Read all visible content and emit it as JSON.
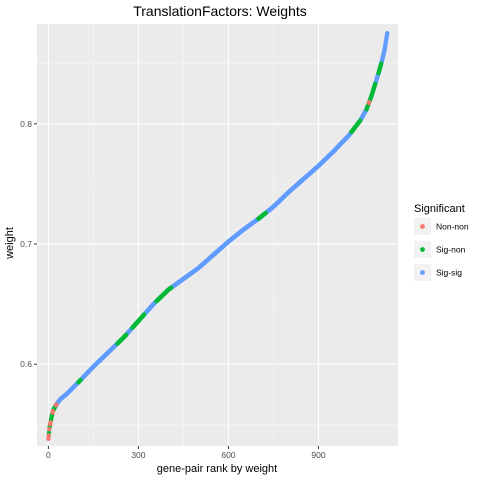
{
  "chart_data": {
    "type": "scatter",
    "title": "TranslationFactors: Weights",
    "xlabel": "gene-pair rank by weight",
    "ylabel": "weight",
    "xlim": [
      -38,
      1165
    ],
    "ylim": [
      0.532,
      0.883
    ],
    "x_ticks": [
      0,
      300,
      600,
      900
    ],
    "x_tick_labels": [
      "0",
      "300",
      "600",
      "900"
    ],
    "y_ticks": [
      0.6,
      0.7,
      0.8
    ],
    "y_tick_labels": [
      "0.6",
      "0.7",
      "0.8"
    ],
    "grid": true,
    "legend": {
      "title": "Significant",
      "position": "right",
      "entries": [
        {
          "label": "Non-non",
          "color": "#F8766D"
        },
        {
          "label": "Sig-non",
          "color": "#00BA38"
        },
        {
          "label": "Sig-sig",
          "color": "#619CFF"
        }
      ]
    },
    "n_points": 1130,
    "curve_x": [
      0,
      3,
      8,
      15,
      25,
      40,
      60,
      100,
      150,
      200,
      250,
      300,
      350,
      400,
      450,
      500,
      550,
      600,
      650,
      700,
      750,
      800,
      850,
      900,
      950,
      1000,
      1040,
      1060,
      1075,
      1090,
      1100,
      1110,
      1118,
      1124,
      1130
    ],
    "curve_y": [
      0.538,
      0.546,
      0.553,
      0.561,
      0.566,
      0.571,
      0.575,
      0.585,
      0.598,
      0.61,
      0.622,
      0.636,
      0.65,
      0.662,
      0.671,
      0.68,
      0.691,
      0.702,
      0.712,
      0.721,
      0.731,
      0.743,
      0.754,
      0.765,
      0.777,
      0.79,
      0.803,
      0.812,
      0.822,
      0.834,
      0.842,
      0.851,
      0.859,
      0.867,
      0.877
    ],
    "series": [
      {
        "name": "Non-non",
        "ranges": [
          [
            0,
            2
          ],
          [
            3,
            4
          ],
          [
            6,
            8
          ],
          [
            14,
            16
          ],
          [
            25,
            27
          ],
          [
            1068,
            1070
          ]
        ]
      },
      {
        "name": "Sig-non",
        "ranges": [
          [
            1,
            3
          ],
          [
            4,
            6
          ],
          [
            8,
            14
          ],
          [
            16,
            25
          ],
          [
            100,
            108
          ],
          [
            230,
            260
          ],
          [
            280,
            320
          ],
          [
            360,
            410
          ],
          [
            700,
            725
          ],
          [
            1010,
            1040
          ],
          [
            1060,
            1068
          ],
          [
            1070,
            1090
          ],
          [
            1100,
            1110
          ]
        ]
      },
      {
        "name": "Sig-sig",
        "ranges": [
          [
            27,
            100
          ],
          [
            108,
            230
          ],
          [
            260,
            280
          ],
          [
            320,
            360
          ],
          [
            410,
            700
          ],
          [
            725,
            1010
          ],
          [
            1040,
            1060
          ],
          [
            1090,
            1100
          ],
          [
            1110,
            1130
          ]
        ]
      }
    ]
  }
}
